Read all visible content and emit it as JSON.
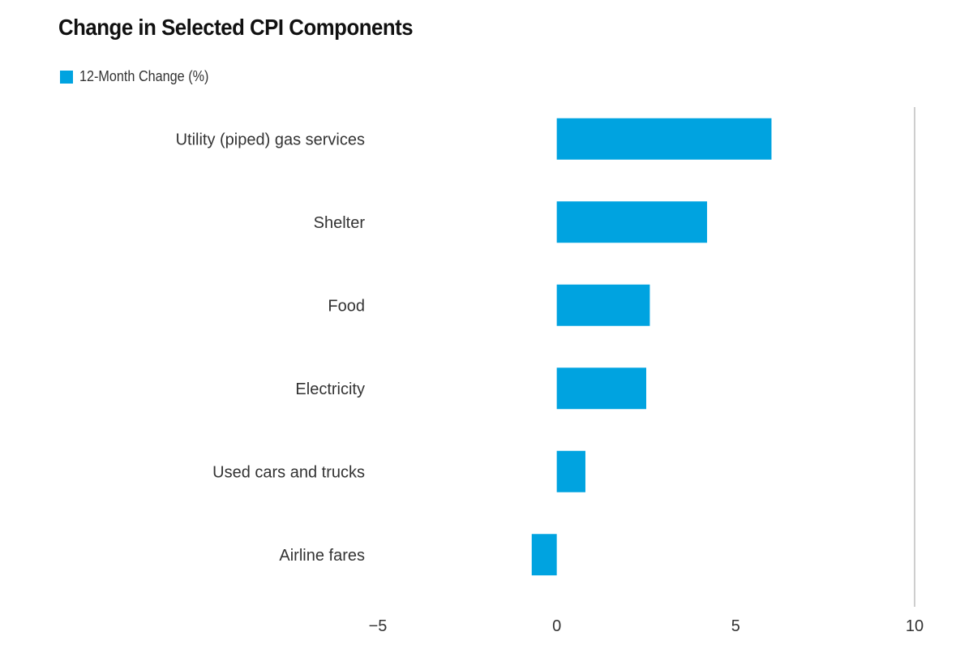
{
  "chart_data": {
    "type": "bar",
    "orientation": "horizontal",
    "title": "Change in Selected CPI Components",
    "xlabel": "",
    "ylabel": "",
    "xlim": [
      -5,
      10
    ],
    "xticks": [
      -5,
      0,
      5,
      10
    ],
    "xtick_labels": [
      "−5",
      "0",
      "5",
      "10"
    ],
    "grid": false,
    "legend_position": "top-left",
    "categories": [
      "Utility (piped) gas services",
      "Shelter",
      "Food",
      "Electricity",
      "Used cars and trucks",
      "Airline fares"
    ],
    "series": [
      {
        "name": "12-Month Change (%)",
        "color": "#00a3e0",
        "values": [
          6.0,
          4.2,
          2.6,
          2.5,
          0.8,
          -0.7
        ]
      }
    ]
  }
}
